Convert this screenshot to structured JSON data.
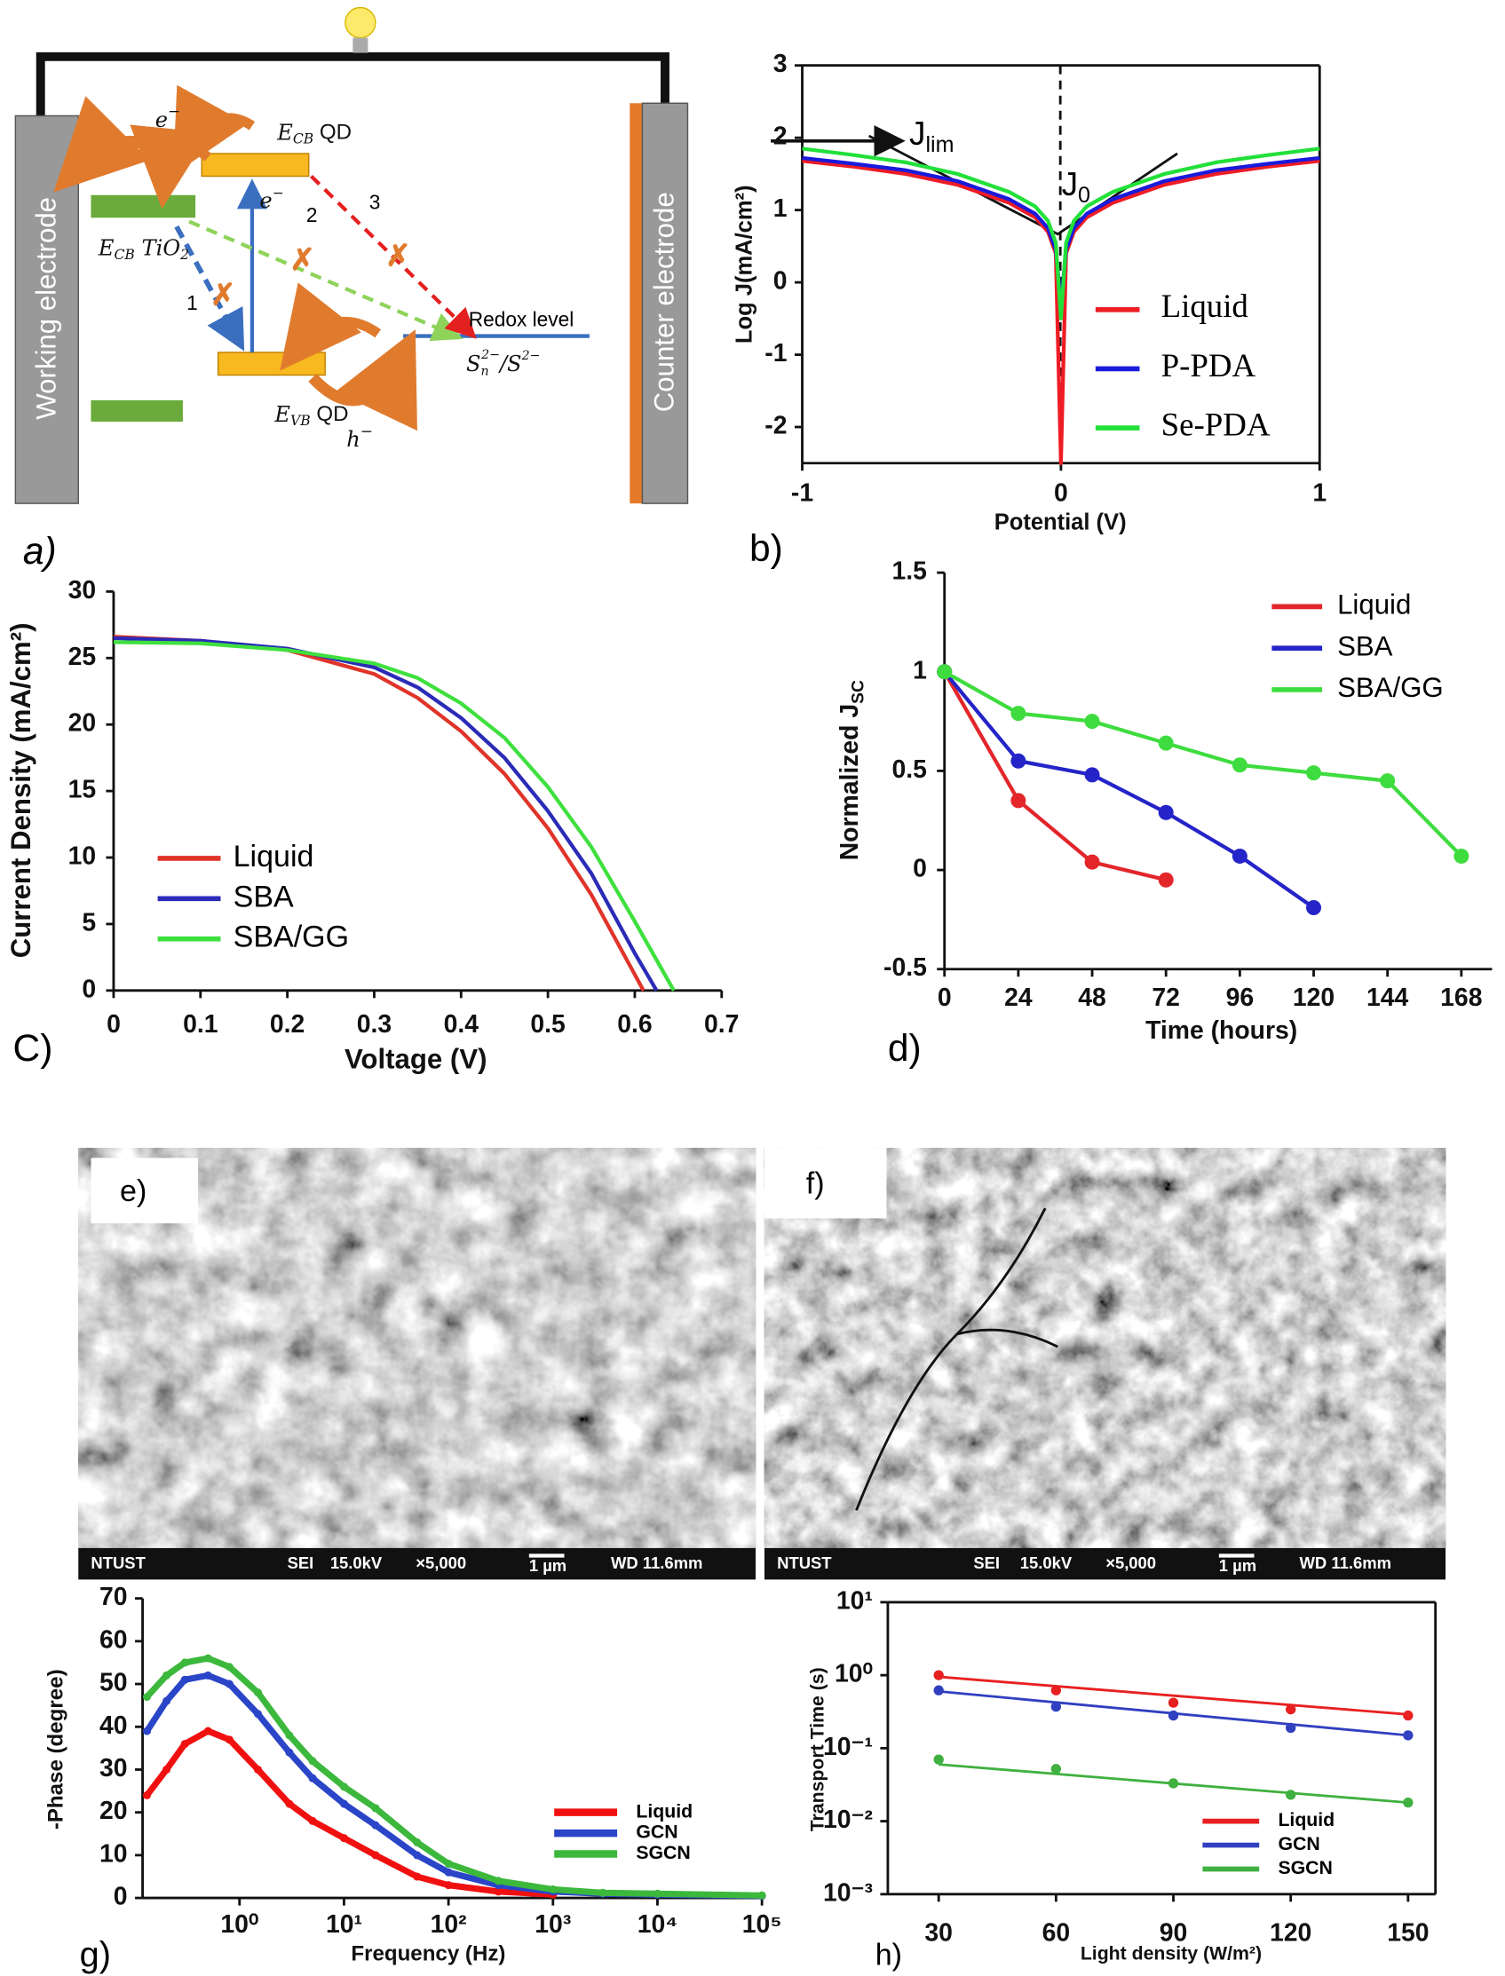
{
  "diagram": {
    "working": "Working electrode",
    "counter": "Counter electrode",
    "e_top": {
      "main": "e",
      "sup": "−"
    },
    "e_mid": {
      "main": "e",
      "sup": "−"
    },
    "ecb_qd": {
      "main": "E",
      "sub": "CB",
      "rest": " QD"
    },
    "ecb_tio2": {
      "main": "E",
      "sub": "CB",
      "rest": " TiO",
      "sub2": "2"
    },
    "evb_qd": {
      "main": "E",
      "sub": "VB",
      "rest": " QD"
    },
    "path1": "1",
    "path2": "2",
    "path3": "3",
    "redox": "Redox level",
    "couple": {
      "main": "S",
      "sub": "n",
      "sup": "2−",
      "rest": "/S",
      "sup2": "2−"
    },
    "hole": {
      "main": "h",
      "sup": "−"
    },
    "label": "a)"
  },
  "images": [
    {
      "label": "e)",
      "footer": [
        "NTUST",
        "SEI",
        "15.0kV",
        "×5,000",
        "1 µm",
        "WD 11.6mm"
      ]
    },
    {
      "label": "f)",
      "footer": [
        "NTUST",
        "SEI",
        "15.0kV",
        "×5,000",
        "1 µm",
        "WD 11.6mm"
      ]
    }
  ],
  "chart_data": [
    {
      "type": "line",
      "label": "b)",
      "xlabel": "Potential (V)",
      "ylabel": "Log J(mA/cm²)",
      "xlim": [
        -1,
        1
      ],
      "xticks": [
        -1,
        0,
        1
      ],
      "ylim": [
        -2.5,
        3
      ],
      "yticks": [
        -2,
        -1,
        0,
        1,
        2,
        3
      ],
      "legend": "lower right",
      "box": true,
      "annotations": [
        {
          "main": "J",
          "sub": "lim"
        },
        {
          "main": "J",
          "sub": "0"
        }
      ],
      "x": [
        -1,
        -0.8,
        -0.6,
        -0.4,
        -0.2,
        -0.1,
        -0.05,
        -0.02,
        0,
        0.02,
        0.05,
        0.1,
        0.2,
        0.4,
        0.6,
        0.8,
        1
      ],
      "series": [
        {
          "name": "Liquid",
          "color": "#ee1c25",
          "values": [
            1.68,
            1.6,
            1.5,
            1.35,
            1.1,
            0.9,
            0.7,
            0.4,
            -2.5,
            0.4,
            0.7,
            0.9,
            1.1,
            1.35,
            1.5,
            1.6,
            1.68
          ]
        },
        {
          "name": "P-PDA",
          "color": "#1a1adb",
          "values": [
            1.72,
            1.64,
            1.55,
            1.4,
            1.15,
            0.95,
            0.75,
            0.45,
            -0.3,
            0.45,
            0.75,
            0.95,
            1.15,
            1.4,
            1.55,
            1.64,
            1.72
          ]
        },
        {
          "name": "Se-PDA",
          "color": "#22e03a",
          "values": [
            1.85,
            1.76,
            1.66,
            1.5,
            1.25,
            1.05,
            0.85,
            0.55,
            -0.5,
            0.55,
            0.85,
            1.05,
            1.25,
            1.5,
            1.66,
            1.76,
            1.85
          ]
        }
      ]
    },
    {
      "type": "line",
      "label": "C)",
      "xlabel": "Voltage (V)",
      "ylabel": "Current Density (mA/cm²)",
      "xlim": [
        0,
        0.7
      ],
      "xticks": [
        0,
        0.1,
        0.2,
        0.3,
        0.4,
        0.5,
        0.6,
        0.7
      ],
      "ylim": [
        0,
        30
      ],
      "yticks": [
        0,
        5,
        10,
        15,
        20,
        25,
        30
      ],
      "legend": "lower left",
      "series": [
        {
          "name": "Liquid",
          "color": "#e0342a",
          "x": [
            0,
            0.1,
            0.2,
            0.3,
            0.35,
            0.4,
            0.45,
            0.5,
            0.55,
            0.6,
            0.61
          ],
          "values": [
            26.6,
            26.3,
            25.6,
            23.8,
            22,
            19.5,
            16.3,
            12.2,
            7.2,
            1.2,
            0
          ]
        },
        {
          "name": "SBA",
          "color": "#2b2bb8",
          "x": [
            0,
            0.1,
            0.2,
            0.3,
            0.35,
            0.4,
            0.45,
            0.5,
            0.55,
            0.6,
            0.625
          ],
          "values": [
            26.5,
            26.3,
            25.7,
            24.3,
            22.8,
            20.5,
            17.5,
            13.5,
            8.8,
            2.8,
            0
          ]
        },
        {
          "name": "SBA/GG",
          "color": "#3ee03e",
          "x": [
            0,
            0.1,
            0.2,
            0.3,
            0.35,
            0.4,
            0.45,
            0.5,
            0.55,
            0.6,
            0.645
          ],
          "values": [
            26.2,
            26.1,
            25.6,
            24.6,
            23.5,
            21.6,
            19,
            15.3,
            10.8,
            5.2,
            0
          ]
        }
      ]
    },
    {
      "type": "line",
      "label": "d)",
      "xlabel": "Time (hours)",
      "ylabel": {
        "main": "Normalized J",
        "sub": "SC"
      },
      "xlim": [
        0,
        178
      ],
      "xticks": [
        0,
        24,
        48,
        72,
        96,
        120,
        144,
        168
      ],
      "ylim": [
        -0.5,
        1.5
      ],
      "yticks": [
        -0.5,
        0,
        0.5,
        1,
        1.5
      ],
      "legend": "upper right",
      "markers": true,
      "series": [
        {
          "name": "Liquid",
          "color": "#e3262a",
          "x": [
            0,
            24,
            48,
            72
          ],
          "values": [
            1,
            0.35,
            0.04,
            -0.05
          ]
        },
        {
          "name": "SBA",
          "color": "#2424c8",
          "x": [
            0,
            24,
            48,
            72,
            96,
            120
          ],
          "values": [
            1,
            0.55,
            0.48,
            0.29,
            0.07,
            -0.19
          ]
        },
        {
          "name": "SBA/GG",
          "color": "#3edc3e",
          "x": [
            0,
            24,
            48,
            72,
            96,
            120,
            144,
            168
          ],
          "values": [
            1,
            0.79,
            0.75,
            0.64,
            0.53,
            0.49,
            0.45,
            0.07
          ]
        }
      ]
    },
    {
      "type": "line",
      "label": "g)",
      "xlabel": "Frequency (Hz)",
      "ylabel": "-Phase (degree)",
      "xlog": true,
      "xlim": [
        0.118,
        100000
      ],
      "xticks": [
        {
          "value": 1,
          "label": "10⁰"
        },
        {
          "value": 10,
          "label": "10¹"
        },
        {
          "value": 100,
          "label": "10²"
        },
        {
          "value": 1000,
          "label": "10³"
        },
        {
          "value": 10000,
          "label": "10⁴"
        },
        {
          "value": 100000,
          "label": "10⁵"
        }
      ],
      "ylim": [
        0,
        70
      ],
      "yticks": [
        0,
        10,
        20,
        30,
        40,
        50,
        60,
        70
      ],
      "legend": "lower right",
      "markers": true,
      "series": [
        {
          "name": "Liquid",
          "color": "#f01010",
          "x": [
            0.13,
            0.2,
            0.3,
            0.5,
            0.8,
            1.5,
            3,
            5,
            10,
            20,
            50,
            100,
            300,
            1000
          ],
          "values": [
            24,
            30,
            36,
            39,
            37,
            30,
            22,
            18,
            14,
            10,
            5,
            3,
            1.5,
            0.8
          ]
        },
        {
          "name": "GCN",
          "color": "#2a45c8",
          "x": [
            0.13,
            0.2,
            0.3,
            0.5,
            0.8,
            1.5,
            3,
            5,
            10,
            20,
            50,
            100,
            300,
            1000,
            3000,
            10000,
            100000
          ],
          "values": [
            39,
            46,
            51,
            52,
            50,
            43,
            34,
            28,
            22,
            17,
            10,
            6,
            3,
            1.5,
            1,
            0.8,
            0.5
          ]
        },
        {
          "name": "SGCN",
          "color": "#3cb83c",
          "x": [
            0.13,
            0.2,
            0.3,
            0.5,
            0.8,
            1.5,
            3,
            5,
            10,
            20,
            50,
            100,
            300,
            1000,
            3000,
            10000,
            100000
          ],
          "values": [
            47,
            52,
            55,
            56,
            54,
            48,
            38,
            32,
            26,
            21,
            13,
            8,
            4,
            2,
            1.2,
            1,
            0.6
          ]
        }
      ]
    },
    {
      "type": "scatter",
      "label": "h)",
      "xlabel": "Light density (W/m²)",
      "ylabel": "Transport Time (s)",
      "xlim": [
        17,
        157
      ],
      "xticks": [
        30,
        60,
        90,
        120,
        150
      ],
      "ylog": true,
      "ylim": [
        0.001,
        10
      ],
      "yticks": [
        {
          "value": 0.001,
          "label": "10⁻³"
        },
        {
          "value": 0.01,
          "label": "10⁻²"
        },
        {
          "value": 0.1,
          "label": "10⁻¹"
        },
        {
          "value": 1,
          "label": "10⁰"
        },
        {
          "value": 10,
          "label": "10¹"
        }
      ],
      "legend": "lower right",
      "box": true,
      "fit_x": [
        30,
        150
      ],
      "x": [
        30,
        60,
        90,
        120,
        150
      ],
      "series": [
        {
          "name": "Liquid",
          "color": "#e82020",
          "values": [
            1.0,
            0.62,
            0.42,
            0.34,
            0.28
          ],
          "fit": [
            0.95,
            0.29
          ]
        },
        {
          "name": "GCN",
          "color": "#3040c0",
          "values": [
            0.62,
            0.37,
            0.28,
            0.19,
            0.15
          ],
          "fit": [
            0.6,
            0.15
          ]
        },
        {
          "name": "SGCN",
          "color": "#40b040",
          "values": [
            0.07,
            0.052,
            0.033,
            0.023,
            0.018
          ],
          "fit": [
            0.06,
            0.018
          ]
        }
      ]
    }
  ]
}
